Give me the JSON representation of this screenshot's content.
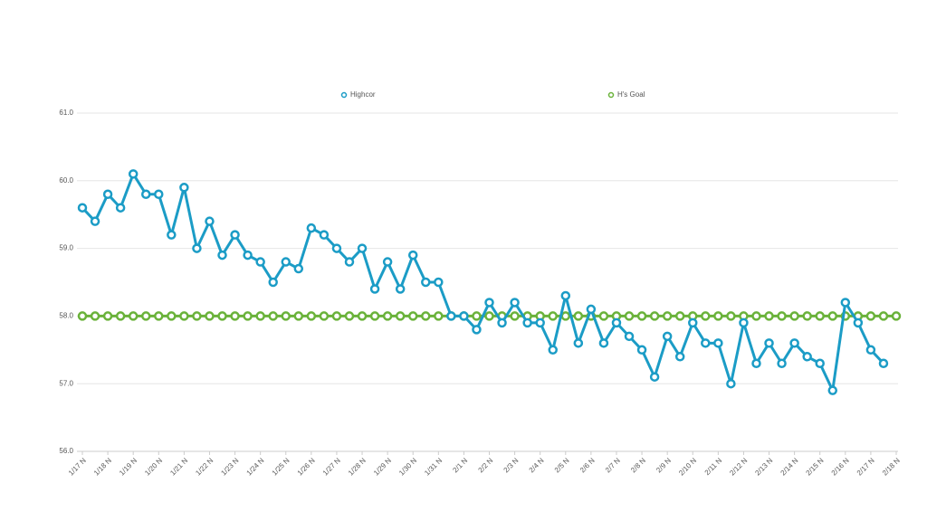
{
  "chart_data": {
    "type": "line",
    "legend": "top",
    "grid": true,
    "categories": [
      "1/17 N",
      null,
      "1/18 N",
      null,
      "1/19 N",
      null,
      "1/20 N",
      null,
      "1/21 N",
      null,
      "1/22 N",
      null,
      "1/23 N",
      null,
      "1/24 N",
      null,
      "1/25 N",
      null,
      "1/26 N",
      null,
      "1/27 N",
      null,
      "1/28 N",
      null,
      "1/29 N",
      null,
      "1/30 N",
      null,
      "1/31 N",
      null,
      "2/1 N",
      null,
      "2/2 N",
      null,
      "2/3 N",
      null,
      "2/4 N",
      null,
      "2/5 N",
      null,
      "2/6 N",
      null,
      "2/7 N",
      null,
      "2/8 N",
      null,
      "2/9 N",
      null,
      "2/10 N",
      null,
      "2/11 N",
      null,
      "2/12 N",
      null,
      "2/13 N",
      null,
      "2/14 N",
      null,
      "2/15 N",
      null,
      "2/16 N",
      null,
      "2/17 N",
      null,
      "2/18 N"
    ],
    "series": [
      {
        "name": "Highcor",
        "color": "#1b9cc6",
        "values": [
          59.6,
          59.4,
          59.8,
          59.6,
          60.1,
          59.8,
          59.8,
          59.2,
          59.9,
          59.0,
          59.4,
          58.9,
          59.2,
          58.9,
          58.8,
          58.5,
          58.8,
          58.7,
          59.3,
          59.2,
          59.0,
          58.8,
          59.0,
          58.4,
          58.8,
          58.4,
          58.9,
          58.5,
          58.5,
          58.0,
          58.0,
          57.8,
          58.2,
          57.9,
          58.2,
          57.9,
          57.9,
          57.5,
          58.3,
          57.6,
          58.1,
          57.6,
          57.9,
          57.7,
          57.5,
          57.1,
          57.7,
          57.4,
          57.9,
          57.6,
          57.6,
          57.0,
          57.9,
          57.3,
          57.6,
          57.3,
          57.6,
          57.4,
          57.3,
          56.9,
          58.2,
          57.9,
          57.5,
          57.3,
          null
        ]
      },
      {
        "name": "H's Goal",
        "color": "#6ab23a",
        "values": [
          58,
          58,
          58,
          58,
          58,
          58,
          58,
          58,
          58,
          58,
          58,
          58,
          58,
          58,
          58,
          58,
          58,
          58,
          58,
          58,
          58,
          58,
          58,
          58,
          58,
          58,
          58,
          58,
          58,
          58,
          58,
          58,
          58,
          58,
          58,
          58,
          58,
          58,
          58,
          58,
          58,
          58,
          58,
          58,
          58,
          58,
          58,
          58,
          58,
          58,
          58,
          58,
          58,
          58,
          58,
          58,
          58,
          58,
          58,
          58,
          58,
          58,
          58,
          58,
          58
        ]
      }
    ],
    "ylim": [
      56,
      61
    ],
    "yticks": [
      {
        "value": 56,
        "label": "56.0"
      },
      {
        "value": 57,
        "label": "57.0"
      },
      {
        "value": 58,
        "label": "58.0"
      },
      {
        "value": 59,
        "label": "59.0"
      },
      {
        "value": 60,
        "label": "60.0"
      },
      {
        "value": 61,
        "label": "61.0"
      }
    ]
  }
}
